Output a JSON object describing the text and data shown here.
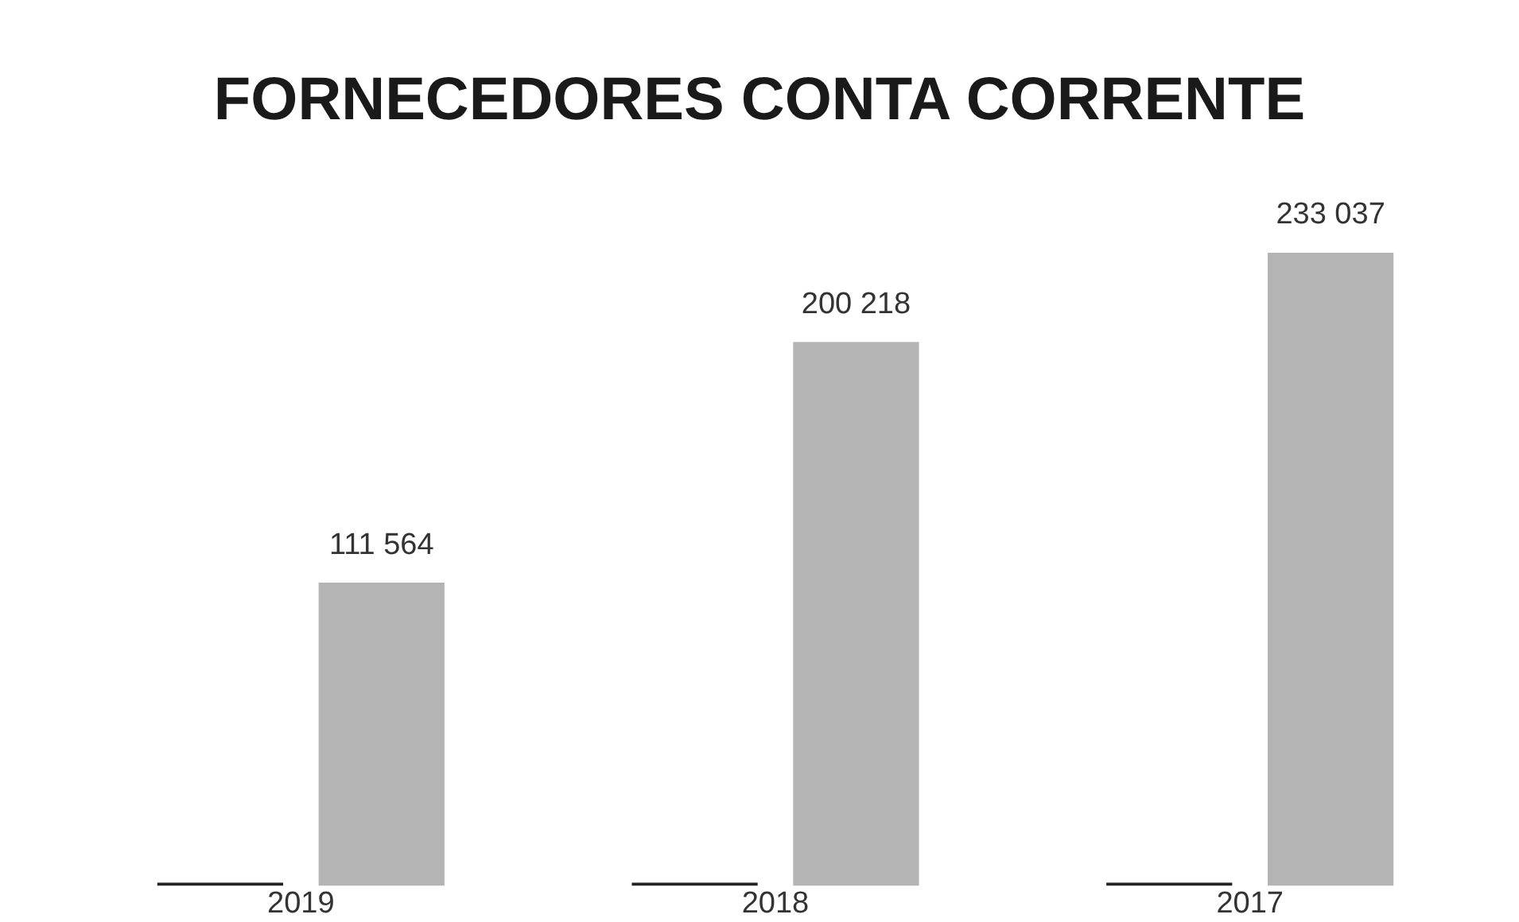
{
  "chart_data": {
    "type": "bar",
    "title": "FORNECEDORES CONTA CORRENTE",
    "categories": [
      "2019",
      "2018",
      "2017"
    ],
    "series": [
      {
        "color": "#222222",
        "values": [
          0,
          0,
          0
        ]
      },
      {
        "color": "#b4b4b4",
        "values": [
          111564,
          200218,
          233037
        ],
        "value_labels": [
          "111 564",
          "200 218",
          "233 037"
        ]
      }
    ],
    "grid": false,
    "legend": false
  }
}
